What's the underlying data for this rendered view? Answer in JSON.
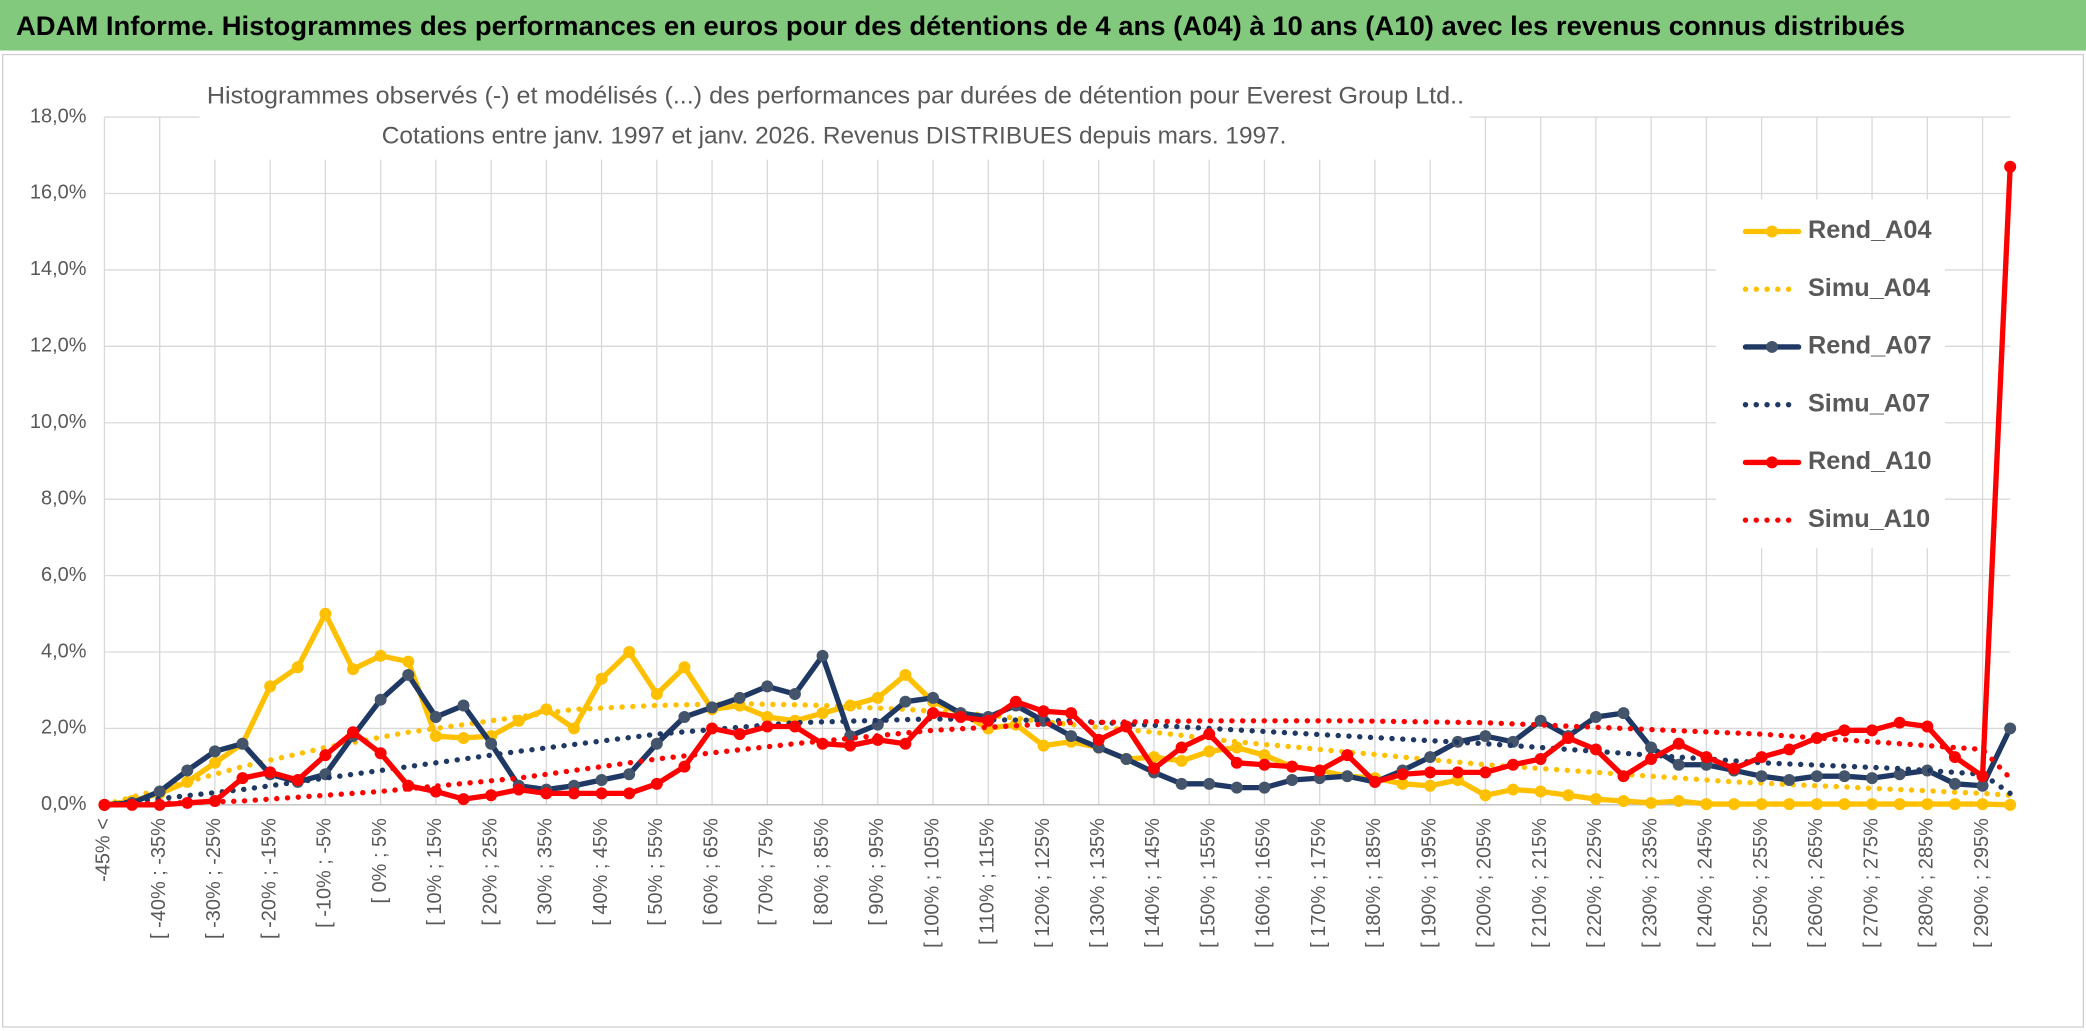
{
  "chart_data": {
    "type": "line",
    "suptitle": "ADAM Informe. Histogrammes des performances en euros pour des détentions de 4 ans (A04) à 10 ans (A10) avec les revenus connus distribués",
    "title": "Histogrammes observés (-) et modélisés (...) des performances par durées de détention pour Everest Group Ltd..",
    "subtitle": "Cotations entre janv. 1997 et janv. 2026. Revenus DISTRIBUES depuis mars. 1997.",
    "categories": [
      "-45% <",
      null,
      "[ -40% ; -35%",
      null,
      "[ -30% ; -25%",
      null,
      "[ -20% ; -15%",
      null,
      "[ -10% ; -5%",
      null,
      "[ 0% ; 5%",
      null,
      "[ 10% ; 15%",
      null,
      "[ 20% ; 25%",
      null,
      "[ 30% ; 35%",
      null,
      "[ 40% ; 45%",
      null,
      "[ 50% ; 55%",
      null,
      "[ 60% ; 65%",
      null,
      "[ 70% ; 75%",
      null,
      "[ 80% ; 85%",
      null,
      "[ 90% ; 95%",
      null,
      "[ 100% ; 105%",
      null,
      "[ 110% ; 115%",
      null,
      "[ 120% ; 125%",
      null,
      "[ 130% ; 135%",
      null,
      "[ 140% ; 145%",
      null,
      "[ 150% ; 155%",
      null,
      "[ 160% ; 165%",
      null,
      "[ 170% ; 175%",
      null,
      "[ 180% ; 185%",
      null,
      "[ 190% ; 195%",
      null,
      "[ 200% ; 205%",
      null,
      "[ 210% ; 215%",
      null,
      "[ 220% ; 225%",
      null,
      "[ 230% ; 235%",
      null,
      "[ 240% ; 245%",
      null,
      "[ 250% ; 255%",
      null,
      "[ 260% ; 265%",
      null,
      "[ 270% ; 275%",
      null,
      "[ 280% ; 285%",
      null,
      "[ 290% ; 295%",
      null
    ],
    "series": [
      {
        "name": "Rend_A04",
        "color": "#ffc000",
        "style": "solid",
        "values": [
          0,
          0.1,
          0.3,
          0.6,
          1.1,
          1.6,
          3.1,
          3.6,
          5.0,
          3.55,
          3.9,
          3.75,
          1.8,
          1.75,
          1.8,
          2.2,
          2.5,
          2.0,
          3.3,
          4.0,
          2.9,
          3.6,
          2.5,
          2.6,
          2.3,
          2.2,
          2.4,
          2.6,
          2.8,
          3.4,
          2.7,
          2.4,
          2.0,
          2.1,
          1.55,
          1.65,
          1.5,
          1.2,
          1.25,
          1.15,
          1.4,
          1.5,
          1.3,
          1.0,
          0.9,
          0.75,
          0.7,
          0.55,
          0.5,
          0.65,
          0.25,
          0.4,
          0.35,
          0.25,
          0.15,
          0.1,
          0.05,
          0.1,
          0.02,
          0.02,
          0.02,
          0.02,
          0.02,
          0.02,
          0.02,
          0.02,
          0.02,
          0.02,
          0.02,
          0
        ]
      },
      {
        "name": "Simu_A04",
        "color": "#ffc000",
        "style": "dotted",
        "values": [
          0,
          0.2,
          0.4,
          0.6,
          0.8,
          1.0,
          1.17,
          1.33,
          1.5,
          1.63,
          1.77,
          1.9,
          2.0,
          2.1,
          2.2,
          2.3,
          2.4,
          2.5,
          2.53,
          2.57,
          2.6,
          2.62,
          2.63,
          2.65,
          2.63,
          2.62,
          2.6,
          2.57,
          2.53,
          2.5,
          2.45,
          2.4,
          2.35,
          2.27,
          2.18,
          2.1,
          2.03,
          1.97,
          1.9,
          1.82,
          1.73,
          1.65,
          1.58,
          1.52,
          1.45,
          1.38,
          1.32,
          1.25,
          1.18,
          1.12,
          1.05,
          1.0,
          0.95,
          0.9,
          0.85,
          0.8,
          0.75,
          0.7,
          0.65,
          0.6,
          0.57,
          0.53,
          0.5,
          0.47,
          0.43,
          0.4,
          0.37,
          0.33,
          0.3,
          0.25
        ]
      },
      {
        "name": "Rend_A07",
        "color": "#1f3864",
        "style": "solid",
        "values": [
          0,
          0.05,
          0.35,
          0.9,
          1.4,
          1.6,
          0.8,
          0.6,
          0.8,
          1.8,
          2.75,
          3.4,
          2.3,
          2.6,
          1.6,
          0.5,
          0.4,
          0.5,
          0.65,
          0.8,
          1.6,
          2.3,
          2.55,
          2.8,
          3.1,
          2.9,
          3.9,
          1.8,
          2.1,
          2.7,
          2.8,
          2.4,
          2.3,
          2.6,
          2.2,
          1.8,
          1.5,
          1.2,
          0.85,
          0.55,
          0.55,
          0.45,
          0.45,
          0.65,
          0.7,
          0.75,
          0.6,
          0.9,
          1.25,
          1.65,
          1.8,
          1.65,
          2.2,
          1.8,
          2.3,
          2.4,
          1.5,
          1.05,
          1.05,
          0.9,
          0.75,
          0.65,
          0.75,
          0.75,
          0.7,
          0.8,
          0.9,
          0.55,
          0.5,
          2.0
        ]
      },
      {
        "name": "Simu_A07",
        "color": "#1f3864",
        "style": "dotted",
        "values": [
          0,
          0.08,
          0.16,
          0.24,
          0.32,
          0.4,
          0.5,
          0.6,
          0.7,
          0.8,
          0.9,
          1.0,
          1.1,
          1.2,
          1.3,
          1.4,
          1.49,
          1.58,
          1.67,
          1.76,
          1.85,
          1.91,
          1.97,
          2.03,
          2.09,
          2.15,
          2.17,
          2.19,
          2.21,
          2.23,
          2.25,
          2.24,
          2.23,
          2.22,
          2.21,
          2.2,
          2.16,
          2.12,
          2.08,
          2.04,
          2.0,
          1.96,
          1.92,
          1.88,
          1.84,
          1.8,
          1.76,
          1.72,
          1.68,
          1.64,
          1.6,
          1.55,
          1.5,
          1.45,
          1.4,
          1.35,
          1.3,
          1.25,
          1.2,
          1.15,
          1.1,
          1.07,
          1.04,
          1.01,
          0.98,
          0.95,
          0.9,
          0.85,
          0.8,
          0.3
        ]
      },
      {
        "name": "Rend_A10",
        "color": "#ff0000",
        "style": "solid",
        "values": [
          0,
          0,
          0,
          0.05,
          0.1,
          0.7,
          0.85,
          0.65,
          1.3,
          1.9,
          1.35,
          0.5,
          0.35,
          0.15,
          0.25,
          0.4,
          0.3,
          0.3,
          0.3,
          0.3,
          0.55,
          1.0,
          2.0,
          1.85,
          2.05,
          2.05,
          1.6,
          1.55,
          1.7,
          1.6,
          2.4,
          2.3,
          2.2,
          2.7,
          2.45,
          2.4,
          1.7,
          2.05,
          0.95,
          1.5,
          1.85,
          1.1,
          1.05,
          1.0,
          0.9,
          1.3,
          0.6,
          0.8,
          0.85,
          0.85,
          0.85,
          1.05,
          1.2,
          1.75,
          1.45,
          0.75,
          1.2,
          1.6,
          1.25,
          0.95,
          1.25,
          1.45,
          1.75,
          1.95,
          1.95,
          2.15,
          2.05,
          1.25,
          0.75,
          16.7
        ]
      },
      {
        "name": "Simu_A10",
        "color": "#ff0000",
        "style": "dotted",
        "values": [
          0,
          0.02,
          0.04,
          0.06,
          0.08,
          0.1,
          0.15,
          0.2,
          0.25,
          0.3,
          0.35,
          0.42,
          0.49,
          0.56,
          0.63,
          0.7,
          0.8,
          0.9,
          1.0,
          1.1,
          1.2,
          1.28,
          1.36,
          1.44,
          1.52,
          1.6,
          1.67,
          1.74,
          1.81,
          1.88,
          1.95,
          1.99,
          2.03,
          2.07,
          2.11,
          2.15,
          2.16,
          2.17,
          2.18,
          2.19,
          2.2,
          2.2,
          2.2,
          2.2,
          2.2,
          2.2,
          2.19,
          2.18,
          2.17,
          2.16,
          2.15,
          2.12,
          2.09,
          2.06,
          2.03,
          2.0,
          1.97,
          1.94,
          1.91,
          1.88,
          1.85,
          1.8,
          1.75,
          1.7,
          1.65,
          1.6,
          1.55,
          1.5,
          1.45,
          0.7
        ]
      }
    ],
    "ylim": [
      0,
      18
    ],
    "yticks": [
      {
        "value": 0,
        "label": "0,0%"
      },
      {
        "value": 2,
        "label": "2,0%"
      },
      {
        "value": 4,
        "label": "4,0%"
      },
      {
        "value": 6,
        "label": "6,0%"
      },
      {
        "value": 8,
        "label": "8,0%"
      },
      {
        "value": 10,
        "label": "10,0%"
      },
      {
        "value": 12,
        "label": "12,0%"
      },
      {
        "value": 14,
        "label": "14,0%"
      },
      {
        "value": 16,
        "label": "16,0%"
      },
      {
        "value": 18,
        "label": "18,0%"
      }
    ],
    "grid": true,
    "legend": "right"
  }
}
